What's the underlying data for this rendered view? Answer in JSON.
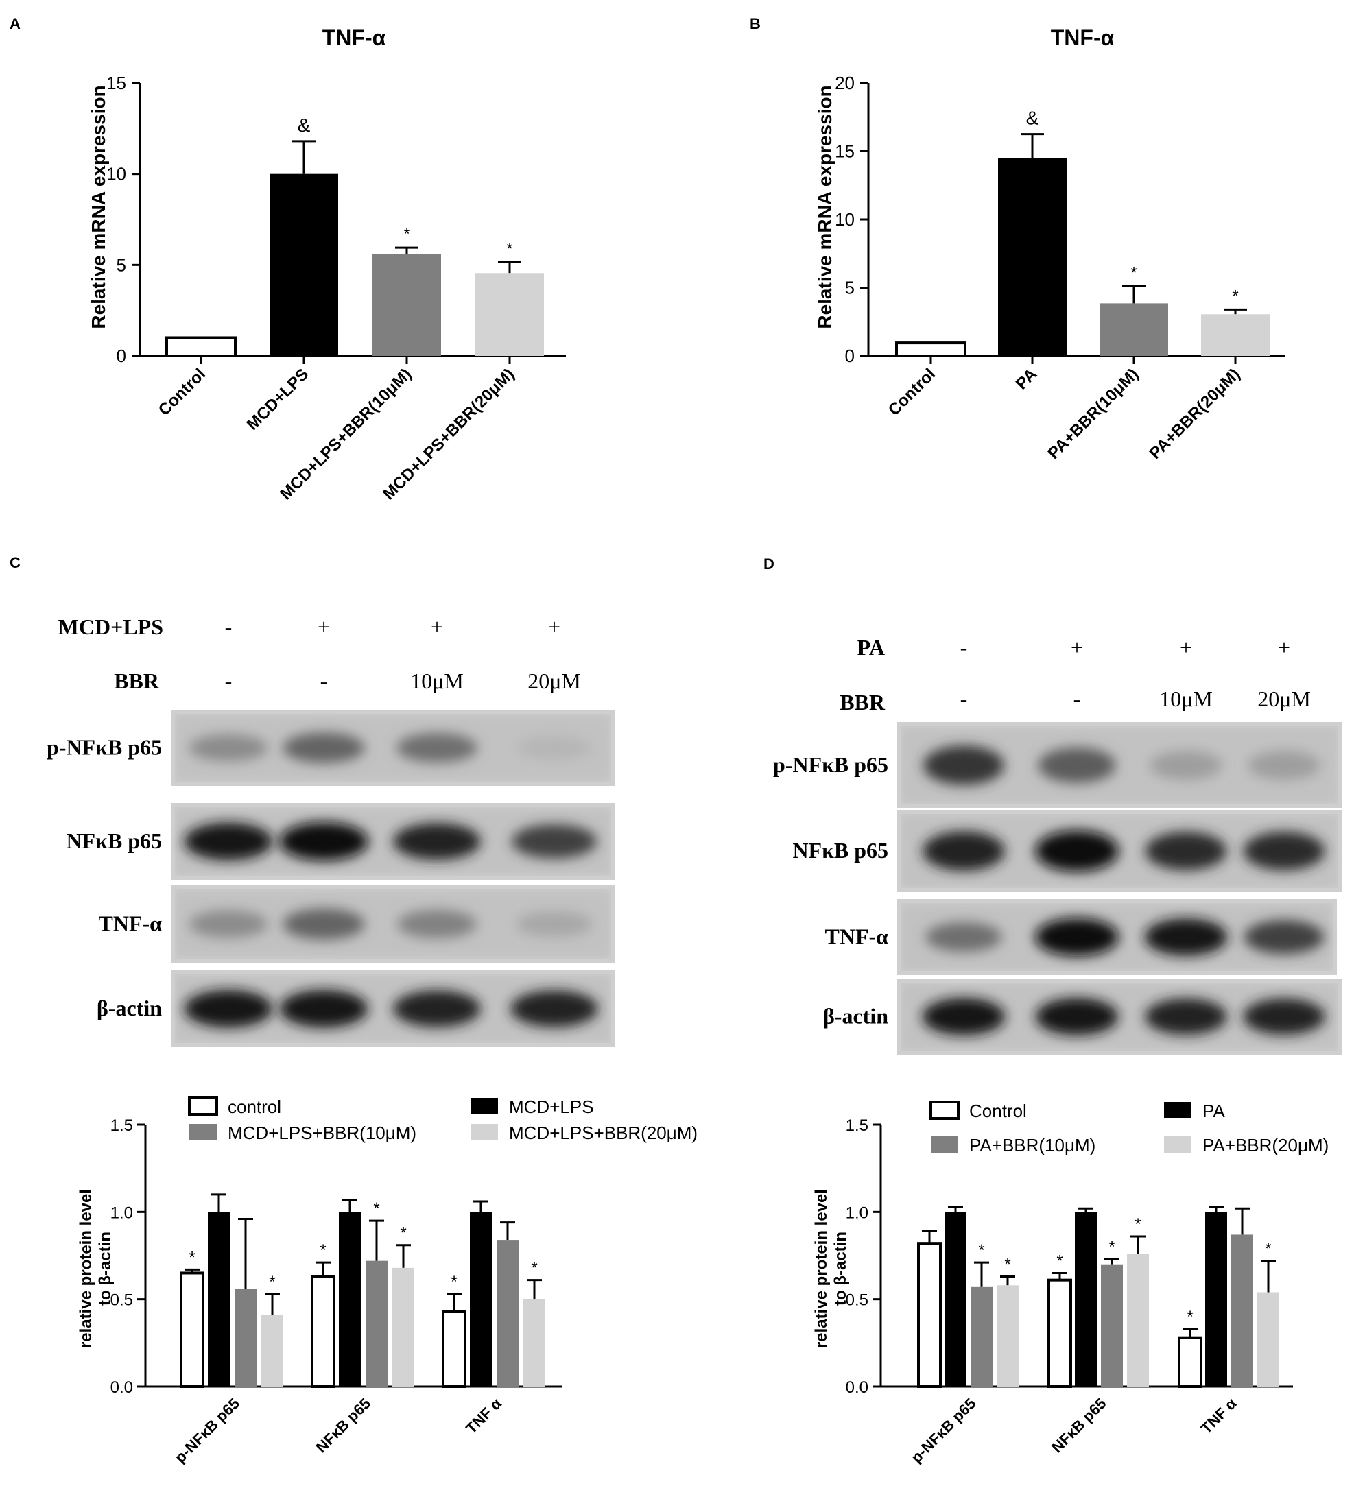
{
  "panels": [
    {
      "letter": "A"
    },
    {
      "letter": "B"
    },
    {
      "letter": "C"
    },
    {
      "letter": "D"
    }
  ],
  "chart_data": [
    {
      "panel": "A",
      "type": "bar",
      "title": "TNF-α",
      "ylabel": "Relative mRNA expression",
      "xlabel": "",
      "ylim": [
        0,
        15
      ],
      "yticks": [
        "0",
        "5",
        "10",
        "15"
      ],
      "categories": [
        "Control",
        "MCD+LPS",
        "MCD+LPS+BBR(10μM)",
        "MCD+LPS+BBR(20μM)"
      ],
      "values": [
        1.0,
        10.0,
        5.6,
        4.55
      ],
      "errors": [
        0,
        1.8,
        0.35,
        0.6
      ],
      "fills": [
        "#ffffff",
        "#000000",
        "#7f7f7f",
        "#d3d3d3"
      ],
      "marks": [
        "",
        "&",
        "*",
        "*"
      ]
    },
    {
      "panel": "B",
      "type": "bar",
      "title": "TNF-α",
      "ylabel": "Relative mRNA expression",
      "xlabel": "",
      "ylim": [
        0,
        20
      ],
      "yticks": [
        "0",
        "5",
        "10",
        "15",
        "20"
      ],
      "categories": [
        "Control",
        "PA",
        "PA+BBR(10μM)",
        "PA+BBR(20μM)"
      ],
      "values": [
        0.95,
        14.5,
        3.85,
        3.05
      ],
      "errors": [
        0,
        1.75,
        1.25,
        0.35
      ],
      "fills": [
        "#ffffff",
        "#000000",
        "#7f7f7f",
        "#d3d3d3"
      ],
      "marks": [
        "",
        "&",
        "*",
        "*"
      ]
    },
    {
      "panel": "C",
      "type": "bar",
      "ylabel_lines": [
        "relative protein level",
        "to β-actin"
      ],
      "xlabel": "",
      "ylim": [
        0,
        1.5
      ],
      "yticks": [
        "0.0",
        "0.5",
        "1.0",
        "1.5"
      ],
      "categories": [
        "p-NFκB p65",
        "NFκB p65",
        "TNF α"
      ],
      "series": [
        {
          "name": "control",
          "color": "#ffffff",
          "values": [
            0.65,
            0.63,
            0.43
          ],
          "errors": [
            0.02,
            0.08,
            0.1
          ],
          "marks": [
            "*",
            "*",
            "*"
          ]
        },
        {
          "name": "MCD+LPS",
          "color": "#000000",
          "values": [
            1.0,
            1.0,
            1.0
          ],
          "errors": [
            0.1,
            0.07,
            0.06
          ],
          "marks": [
            "",
            "",
            ""
          ]
        },
        {
          "name": "MCD+LPS+BBR(10μM)",
          "color": "#7f7f7f",
          "values": [
            0.56,
            0.72,
            0.84
          ],
          "errors": [
            0.4,
            0.23,
            0.1
          ],
          "marks": [
            "",
            "*",
            ""
          ]
        },
        {
          "name": "MCD+LPS+BBR(20μM)",
          "color": "#d3d3d3",
          "values": [
            0.41,
            0.68,
            0.5
          ],
          "errors": [
            0.12,
            0.13,
            0.11
          ],
          "marks": [
            "*",
            "*",
            "*"
          ]
        }
      ],
      "legend_position": "top"
    },
    {
      "panel": "D",
      "type": "bar",
      "ylabel_lines": [
        "relative protein level",
        "to β-actin"
      ],
      "xlabel": "",
      "ylim": [
        0,
        1.5
      ],
      "yticks": [
        "0.0",
        "0.5",
        "1.0",
        "1.5"
      ],
      "categories": [
        "p-NFκB p65",
        "NFκB p65",
        "TNF α"
      ],
      "series": [
        {
          "name": "Control",
          "color": "#ffffff",
          "values": [
            0.82,
            0.61,
            0.28
          ],
          "errors": [
            0.07,
            0.04,
            0.05
          ],
          "marks": [
            "",
            "*",
            "*"
          ]
        },
        {
          "name": "PA",
          "color": "#000000",
          "values": [
            1.0,
            1.0,
            1.0
          ],
          "errors": [
            0.03,
            0.02,
            0.03
          ],
          "marks": [
            "",
            "",
            ""
          ]
        },
        {
          "name": "PA+BBR(10μM)",
          "color": "#7f7f7f",
          "values": [
            0.57,
            0.7,
            0.87
          ],
          "errors": [
            0.14,
            0.03,
            0.15
          ],
          "marks": [
            "*",
            "*",
            ""
          ]
        },
        {
          "name": "PA+BBR(20μM)",
          "color": "#d3d3d3",
          "values": [
            0.58,
            0.76,
            0.54
          ],
          "errors": [
            0.05,
            0.1,
            0.18
          ],
          "marks": [
            "*",
            "*",
            "*"
          ]
        }
      ],
      "legend_position": "top"
    }
  ],
  "blots": [
    {
      "panel": "C",
      "treatments": [
        {
          "label": "MCD+LPS",
          "lanes": [
            "-",
            "+",
            "+",
            "+"
          ]
        },
        {
          "label": "BBR",
          "lanes": [
            "-",
            "-",
            "10μM",
            "20μM"
          ]
        }
      ],
      "rows": [
        {
          "label": "p-NFκB p65",
          "intensity": [
            0.35,
            0.55,
            0.5,
            0.12
          ]
        },
        {
          "label": "NFκB p65",
          "intensity": [
            0.95,
            1.0,
            0.9,
            0.75
          ]
        },
        {
          "label": "TNF-α",
          "intensity": [
            0.35,
            0.55,
            0.4,
            0.2
          ]
        },
        {
          "label": "β-actin",
          "intensity": [
            0.95,
            0.95,
            0.9,
            0.9
          ]
        }
      ]
    },
    {
      "panel": "D",
      "treatments": [
        {
          "label": "PA",
          "lanes": [
            "-",
            "+",
            "+",
            "+"
          ]
        },
        {
          "label": "BBR",
          "lanes": [
            "-",
            "-",
            "10μM",
            "20μM"
          ]
        }
      ],
      "rows": [
        {
          "label": "p-NFκB p65",
          "intensity": [
            0.8,
            0.6,
            0.25,
            0.25
          ]
        },
        {
          "label": "NFκB p65",
          "intensity": [
            0.9,
            1.0,
            0.85,
            0.85
          ]
        },
        {
          "label": "TNF-α",
          "intensity": [
            0.5,
            1.0,
            0.95,
            0.75
          ]
        },
        {
          "label": "β-actin",
          "intensity": [
            0.95,
            0.95,
            0.9,
            0.9
          ]
        }
      ]
    }
  ]
}
